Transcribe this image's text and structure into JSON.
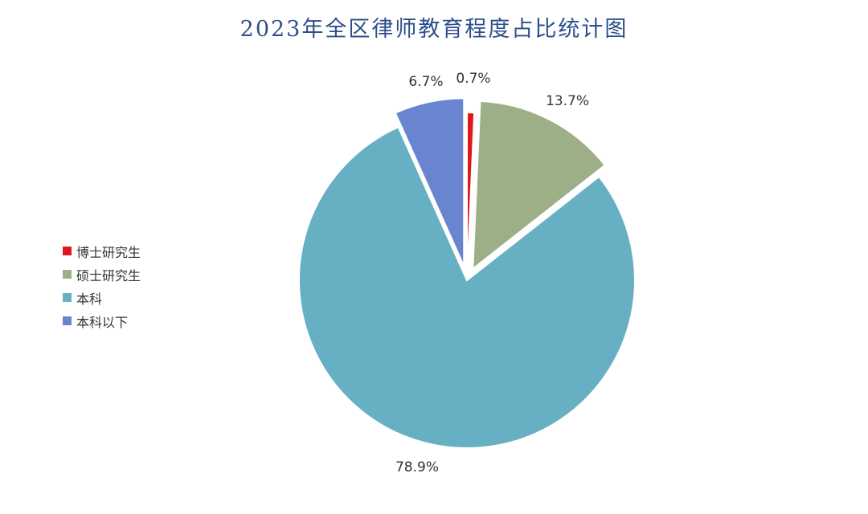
{
  "chart_data": {
    "type": "pie",
    "title": "2023年全区律师教育程度占比统计图",
    "slices": [
      {
        "label": "博士研究生",
        "value": 0.7,
        "display": "0.7%",
        "color": "#e2171c"
      },
      {
        "label": "硕士研究生",
        "value": 13.7,
        "display": "13.7%",
        "color": "#9daf86"
      },
      {
        "label": "本科",
        "value": 78.9,
        "display": "78.9%",
        "color": "#67b0c4"
      },
      {
        "label": "本科以下",
        "value": 6.7,
        "display": "6.7%",
        "color": "#6a85d0"
      }
    ],
    "legend_position": "left",
    "start": "top, clockwise",
    "exploded": [
      "硕士研究生",
      "本科以下"
    ]
  }
}
